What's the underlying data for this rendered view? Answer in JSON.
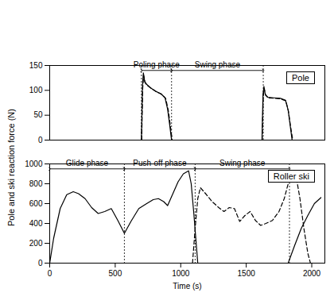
{
  "chart_data": [
    {
      "type": "line",
      "title": "Pole",
      "ylabel": "Pole and ski reaction force (N)",
      "xlim": [
        0,
        2100
      ],
      "ylim": [
        0,
        150
      ],
      "yticks": [
        0,
        50,
        100,
        150
      ],
      "grid": false,
      "vlines": [
        700,
        930,
        1630
      ],
      "annotations": [
        {
          "text": "Poling phase",
          "x_start": 700,
          "x_end": 930,
          "y": 140
        },
        {
          "text": "Swing phase",
          "x_start": 930,
          "x_end": 1630,
          "y": 140
        }
      ],
      "series": [
        {
          "color": "#000000",
          "line_style": "solid",
          "x": [
            700,
            708,
            715,
            725,
            740,
            770,
            810,
            850,
            880,
            900,
            915,
            930,
            1280,
            1620,
            1628,
            1635,
            1645,
            1665,
            1710,
            1760,
            1800,
            1820,
            1835,
            1850
          ],
          "values": [
            0,
            110,
            135,
            118,
            112,
            105,
            98,
            93,
            85,
            62,
            32,
            0,
            null,
            0,
            92,
            108,
            92,
            86,
            85,
            84,
            80,
            60,
            30,
            0
          ]
        },
        {
          "color": "#000000",
          "line_style": "dashed",
          "x": [
            702,
            710,
            717,
            728,
            745,
            775,
            815,
            855,
            885,
            905,
            920,
            935,
            1280,
            1622,
            1630,
            1637,
            1648,
            1668,
            1712,
            1762,
            1802,
            1822,
            1838,
            1855
          ],
          "values": [
            0,
            105,
            130,
            115,
            110,
            104,
            97,
            92,
            84,
            60,
            30,
            0,
            null,
            0,
            88,
            104,
            90,
            85,
            84,
            83,
            79,
            58,
            28,
            0
          ]
        }
      ]
    },
    {
      "type": "line",
      "title": "Roller ski",
      "xlabel": "Time (s)",
      "xlim": [
        0,
        2100
      ],
      "xticks": [
        0,
        500,
        1000,
        1500,
        2000
      ],
      "ylim": [
        0,
        1000
      ],
      "yticks": [
        0,
        200,
        400,
        600,
        800,
        1000
      ],
      "grid": false,
      "vlines": [
        570,
        1110,
        1830
      ],
      "annotations": [
        {
          "text": "Glide phase",
          "x_start": 0,
          "x_end": 570,
          "y": 950
        },
        {
          "text": "Push-off phase",
          "x_start": 570,
          "x_end": 1110,
          "y": 950
        },
        {
          "text": "Swing phase",
          "x_start": 1110,
          "x_end": 1830,
          "y": 950
        }
      ],
      "series": [
        {
          "color": "#000000",
          "line_style": "solid",
          "x": [
            0,
            30,
            80,
            130,
            180,
            220,
            270,
            320,
            370,
            420,
            470,
            520,
            570,
            620,
            680,
            740,
            790,
            830,
            870,
            900,
            940,
            980,
            1020,
            1060,
            1080,
            1100,
            1130,
            1500,
            1820,
            1870,
            1920,
            1970,
            2020,
            2070
          ],
          "values": [
            0,
            250,
            550,
            690,
            720,
            700,
            650,
            560,
            500,
            520,
            550,
            430,
            300,
            420,
            550,
            600,
            640,
            650,
            620,
            580,
            700,
            820,
            900,
            930,
            800,
            500,
            0,
            null,
            0,
            180,
            350,
            480,
            600,
            660
          ]
        },
        {
          "color": "#000000",
          "line_style": "dashed",
          "x": [
            1090,
            1110,
            1130,
            1150,
            1190,
            1240,
            1290,
            1330,
            1370,
            1410,
            1450,
            1490,
            1530,
            1570,
            1610,
            1650,
            1700,
            1750,
            1790,
            1820,
            1850,
            1880,
            1910,
            1940,
            1970,
            1990
          ],
          "values": [
            0,
            350,
            650,
            760,
            700,
            620,
            560,
            520,
            560,
            550,
            420,
            480,
            520,
            430,
            380,
            400,
            430,
            520,
            650,
            800,
            920,
            880,
            650,
            350,
            100,
            0
          ]
        }
      ]
    }
  ]
}
